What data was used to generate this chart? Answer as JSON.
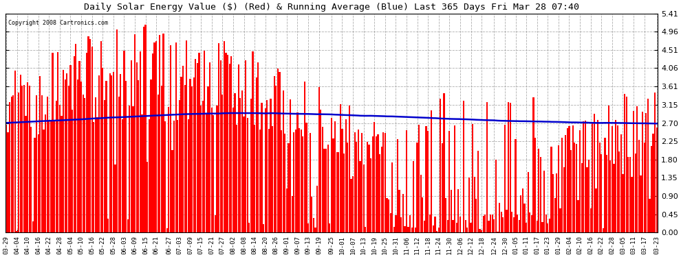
{
  "title": "Daily Solar Energy Value ($) (Red) & Running Average (Blue) Last 365 Days Fri Mar 28 07:40",
  "copyright": "Copyright 2008 Cartronics.com",
  "yticks": [
    0.0,
    0.45,
    0.9,
    1.35,
    1.8,
    2.25,
    2.7,
    3.15,
    3.61,
    4.06,
    4.51,
    4.96,
    5.41
  ],
  "ylim": [
    0,
    5.41
  ],
  "bar_color": "#ff0000",
  "avg_color": "#0000cc",
  "background_color": "#ffffff",
  "grid_color": "#999999",
  "x_labels": [
    "03-29",
    "04-04",
    "04-10",
    "04-16",
    "04-22",
    "04-28",
    "05-04",
    "05-10",
    "05-16",
    "05-22",
    "05-28",
    "06-03",
    "06-09",
    "06-15",
    "06-21",
    "06-27",
    "07-03",
    "07-09",
    "07-15",
    "07-21",
    "07-27",
    "08-02",
    "08-08",
    "08-14",
    "08-20",
    "08-26",
    "09-01",
    "09-07",
    "09-13",
    "09-19",
    "09-25",
    "10-01",
    "10-07",
    "10-13",
    "10-19",
    "10-25",
    "10-31",
    "11-06",
    "11-12",
    "11-18",
    "11-24",
    "11-30",
    "12-06",
    "12-12",
    "12-18",
    "12-24",
    "12-30",
    "01-05",
    "01-11",
    "01-17",
    "01-23",
    "01-29",
    "02-04",
    "02-10",
    "02-16",
    "02-22",
    "02-28",
    "03-05",
    "03-11",
    "03-17",
    "03-23"
  ],
  "avg_shape_x": [
    0,
    30,
    60,
    90,
    120,
    150,
    180,
    210,
    240,
    270,
    300,
    330,
    364
  ],
  "avg_shape_y": [
    2.7,
    2.74,
    2.8,
    2.87,
    2.92,
    2.95,
    2.95,
    2.93,
    2.9,
    2.85,
    2.8,
    2.74,
    2.7
  ]
}
